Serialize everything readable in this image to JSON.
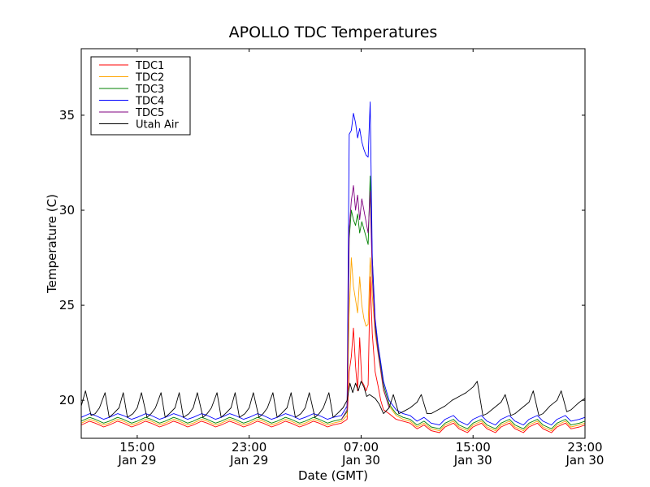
{
  "chart_data": {
    "type": "line",
    "title": "APOLLO TDC Temperatures",
    "xlabel": "Date (GMT)",
    "ylabel": "Temperature (C)",
    "xlim": [
      11,
      47
    ],
    "ylim": [
      18,
      38.5
    ],
    "grid": false,
    "legend_position": "top-left",
    "yticks": [
      {
        "value": 20,
        "label": "20"
      },
      {
        "value": 25,
        "label": "25"
      },
      {
        "value": 30,
        "label": "30"
      },
      {
        "value": 35,
        "label": "35"
      }
    ],
    "xticks": [
      {
        "value": 15,
        "time": "15:00",
        "date": "Jan 29"
      },
      {
        "value": 23,
        "time": "23:00",
        "date": "Jan 29"
      },
      {
        "value": 31,
        "time": "07:00",
        "date": "Jan 30"
      },
      {
        "value": 39,
        "time": "15:00",
        "date": "Jan 30"
      },
      {
        "value": 47,
        "time": "23:00",
        "date": "Jan 30"
      }
    ],
    "x_unit": "hours since 00:00 Jan 29 (GMT)",
    "series": [
      {
        "name": "TDC1",
        "color": "#ff0000",
        "x": [
          11.0,
          11.6,
          12.0,
          12.6,
          13.0,
          13.6,
          14.0,
          14.6,
          15.0,
          15.6,
          16.0,
          16.6,
          17.0,
          17.6,
          18.0,
          18.6,
          19.0,
          19.6,
          20.0,
          20.6,
          21.0,
          21.6,
          22.0,
          22.6,
          23.0,
          23.6,
          24.0,
          24.6,
          25.0,
          25.6,
          26.0,
          26.6,
          27.0,
          27.6,
          28.0,
          28.6,
          29.0,
          29.6,
          30.0,
          30.15,
          30.3,
          30.45,
          30.6,
          30.75,
          30.9,
          31.05,
          31.2,
          31.35,
          31.5,
          31.65,
          31.8,
          32.0,
          32.2,
          32.4,
          32.6,
          33.0,
          33.5,
          34.0,
          34.5,
          35.0,
          35.5,
          36.0,
          36.6,
          37.0,
          37.6,
          38.0,
          38.6,
          39.0,
          39.6,
          40.0,
          40.6,
          41.0,
          41.6,
          42.0,
          42.6,
          43.0,
          43.6,
          44.0,
          44.6,
          45.0,
          45.6,
          46.0,
          46.6,
          47.0
        ],
        "values": [
          18.7,
          18.9,
          18.8,
          18.6,
          18.7,
          18.9,
          18.8,
          18.6,
          18.7,
          18.9,
          18.8,
          18.6,
          18.7,
          18.9,
          18.8,
          18.6,
          18.7,
          18.9,
          18.8,
          18.6,
          18.7,
          18.9,
          18.8,
          18.6,
          18.7,
          18.9,
          18.8,
          18.6,
          18.7,
          18.9,
          18.8,
          18.6,
          18.7,
          18.9,
          18.8,
          18.6,
          18.7,
          18.8,
          19.0,
          21.5,
          22.3,
          23.8,
          21.8,
          20.5,
          23.3,
          21.0,
          20.8,
          20.5,
          20.8,
          26.5,
          23.5,
          21.5,
          20.8,
          20.0,
          19.5,
          19.3,
          19.0,
          18.9,
          18.8,
          18.5,
          18.7,
          18.4,
          18.3,
          18.6,
          18.8,
          18.5,
          18.3,
          18.6,
          18.8,
          18.5,
          18.3,
          18.6,
          18.8,
          18.5,
          18.3,
          18.6,
          18.8,
          18.5,
          18.3,
          18.6,
          18.8,
          18.5,
          18.6,
          18.7
        ]
      },
      {
        "name": "TDC2",
        "color": "#ffa500",
        "x": [
          11.0,
          11.6,
          12.0,
          12.6,
          13.0,
          13.6,
          14.0,
          14.6,
          15.0,
          15.6,
          16.0,
          16.6,
          17.0,
          17.6,
          18.0,
          18.6,
          19.0,
          19.6,
          20.0,
          20.6,
          21.0,
          21.6,
          22.0,
          22.6,
          23.0,
          23.6,
          24.0,
          24.6,
          25.0,
          25.6,
          26.0,
          26.6,
          27.0,
          27.6,
          28.0,
          28.6,
          29.0,
          29.6,
          30.0,
          30.15,
          30.3,
          30.45,
          30.6,
          30.75,
          30.9,
          31.05,
          31.2,
          31.35,
          31.5,
          31.65,
          31.8,
          32.0,
          32.2,
          32.4,
          32.6,
          33.0,
          33.5,
          34.0,
          34.5,
          35.0,
          35.5,
          36.0,
          36.6,
          37.0,
          37.6,
          38.0,
          38.6,
          39.0,
          39.6,
          40.0,
          40.6,
          41.0,
          41.6,
          42.0,
          42.6,
          43.0,
          43.6,
          44.0,
          44.6,
          45.0,
          45.6,
          46.0,
          46.6,
          47.0
        ],
        "values": [
          18.8,
          19.0,
          18.9,
          18.7,
          18.8,
          19.0,
          18.9,
          18.7,
          18.8,
          19.0,
          18.9,
          18.7,
          18.8,
          19.0,
          18.9,
          18.7,
          18.8,
          19.0,
          18.9,
          18.7,
          18.8,
          19.0,
          18.9,
          18.7,
          18.8,
          19.0,
          18.9,
          18.7,
          18.8,
          19.0,
          18.9,
          18.7,
          18.8,
          19.0,
          18.9,
          18.7,
          18.8,
          18.9,
          19.2,
          24.5,
          27.5,
          26.0,
          25.3,
          24.6,
          26.5,
          25.0,
          24.3,
          23.9,
          24.0,
          27.5,
          25.5,
          23.5,
          22.5,
          21.5,
          20.5,
          19.7,
          19.2,
          19.0,
          18.9,
          18.6,
          18.8,
          18.5,
          18.4,
          18.7,
          18.9,
          18.6,
          18.4,
          18.7,
          18.9,
          18.6,
          18.4,
          18.7,
          18.9,
          18.6,
          18.4,
          18.7,
          18.9,
          18.6,
          18.4,
          18.7,
          18.9,
          18.6,
          18.7,
          18.8
        ]
      },
      {
        "name": "TDC3",
        "color": "#008000",
        "x": [
          11.0,
          11.6,
          12.0,
          12.6,
          13.0,
          13.6,
          14.0,
          14.6,
          15.0,
          15.6,
          16.0,
          16.6,
          17.0,
          17.6,
          18.0,
          18.6,
          19.0,
          19.6,
          20.0,
          20.6,
          21.0,
          21.6,
          22.0,
          22.6,
          23.0,
          23.6,
          24.0,
          24.6,
          25.0,
          25.6,
          26.0,
          26.6,
          27.0,
          27.6,
          28.0,
          28.6,
          29.0,
          29.6,
          30.0,
          30.15,
          30.3,
          30.45,
          30.6,
          30.75,
          30.9,
          31.05,
          31.2,
          31.35,
          31.5,
          31.65,
          31.8,
          32.0,
          32.2,
          32.4,
          32.6,
          33.0,
          33.5,
          34.0,
          34.5,
          35.0,
          35.5,
          36.0,
          36.6,
          37.0,
          37.6,
          38.0,
          38.6,
          39.0,
          39.6,
          40.0,
          40.6,
          41.0,
          41.6,
          42.0,
          42.6,
          43.0,
          43.6,
          44.0,
          44.6,
          45.0,
          45.6,
          46.0,
          46.6,
          47.0
        ],
        "values": [
          18.9,
          19.1,
          19.0,
          18.8,
          18.9,
          19.1,
          19.0,
          18.8,
          18.9,
          19.1,
          19.0,
          18.8,
          18.9,
          19.1,
          19.0,
          18.8,
          18.9,
          19.1,
          19.0,
          18.8,
          18.9,
          19.1,
          19.0,
          18.8,
          18.9,
          19.1,
          19.0,
          18.8,
          18.9,
          19.1,
          19.0,
          18.8,
          18.9,
          19.1,
          19.0,
          18.8,
          18.9,
          19.0,
          19.4,
          28.5,
          30.0,
          29.5,
          29.2,
          29.8,
          28.8,
          29.4,
          29.0,
          28.6,
          28.2,
          31.8,
          27.5,
          24.0,
          22.8,
          21.8,
          20.8,
          19.8,
          19.3,
          19.1,
          19.0,
          18.7,
          18.9,
          18.6,
          18.5,
          18.8,
          19.0,
          18.7,
          18.5,
          18.8,
          19.0,
          18.7,
          18.5,
          18.8,
          19.0,
          18.7,
          18.5,
          18.8,
          19.0,
          18.7,
          18.5,
          18.8,
          19.0,
          18.7,
          18.8,
          18.9
        ]
      },
      {
        "name": "TDC4",
        "color": "#0000ff",
        "x": [
          11.0,
          11.6,
          12.0,
          12.6,
          13.0,
          13.6,
          14.0,
          14.6,
          15.0,
          15.6,
          16.0,
          16.6,
          17.0,
          17.6,
          18.0,
          18.6,
          19.0,
          19.6,
          20.0,
          20.6,
          21.0,
          21.6,
          22.0,
          22.6,
          23.0,
          23.6,
          24.0,
          24.6,
          25.0,
          25.6,
          26.0,
          26.6,
          27.0,
          27.6,
          28.0,
          28.6,
          29.0,
          29.6,
          30.0,
          30.15,
          30.3,
          30.45,
          30.6,
          30.75,
          30.9,
          31.05,
          31.2,
          31.35,
          31.5,
          31.65,
          31.8,
          32.0,
          32.2,
          32.4,
          32.6,
          33.0,
          33.5,
          34.0,
          34.5,
          35.0,
          35.5,
          36.0,
          36.6,
          37.0,
          37.6,
          38.0,
          38.6,
          39.0,
          39.6,
          40.0,
          40.6,
          41.0,
          41.6,
          42.0,
          42.6,
          43.0,
          43.6,
          44.0,
          44.6,
          45.0,
          45.6,
          46.0,
          46.6,
          47.0
        ],
        "values": [
          19.1,
          19.3,
          19.2,
          19.0,
          19.1,
          19.3,
          19.2,
          19.0,
          19.1,
          19.3,
          19.2,
          19.0,
          19.1,
          19.3,
          19.2,
          19.0,
          19.1,
          19.3,
          19.2,
          19.0,
          19.1,
          19.3,
          19.2,
          19.0,
          19.1,
          19.3,
          19.2,
          19.0,
          19.1,
          19.3,
          19.2,
          19.0,
          19.1,
          19.3,
          19.2,
          19.0,
          19.1,
          19.2,
          19.7,
          34.0,
          34.2,
          35.1,
          34.6,
          33.8,
          34.3,
          33.6,
          33.2,
          32.9,
          32.8,
          35.7,
          27.5,
          24.3,
          23.0,
          22.0,
          21.0,
          20.0,
          19.5,
          19.3,
          19.2,
          18.9,
          19.1,
          18.8,
          18.7,
          19.0,
          19.2,
          18.9,
          18.7,
          19.0,
          19.2,
          18.9,
          18.7,
          19.0,
          19.2,
          18.9,
          18.7,
          19.0,
          19.2,
          18.9,
          18.7,
          19.0,
          19.2,
          18.9,
          19.0,
          19.1
        ]
      },
      {
        "name": "TDC5",
        "color": "#800080",
        "x": [
          29.6,
          30.0,
          30.15,
          30.3,
          30.45,
          30.6,
          30.75,
          30.9,
          31.05,
          31.2,
          31.35,
          31.5,
          31.65,
          31.8,
          32.0,
          32.2,
          32.4,
          32.6,
          33.0
        ],
        "values": [
          19.0,
          19.5,
          29.0,
          30.5,
          31.3,
          30.0,
          30.8,
          29.5,
          30.6,
          30.0,
          29.4,
          28.8,
          31.0,
          26.5,
          23.8,
          22.6,
          21.6,
          20.6,
          19.6
        ]
      },
      {
        "name": "Utah Air",
        "color": "#000000",
        "x": [
          11.0,
          11.3,
          11.7,
          12.0,
          12.3,
          12.7,
          13.0,
          13.3,
          13.7,
          14.0,
          14.3,
          14.7,
          15.0,
          15.3,
          15.7,
          16.0,
          16.3,
          16.7,
          17.0,
          17.3,
          17.7,
          18.0,
          18.3,
          18.7,
          19.0,
          19.3,
          19.7,
          20.0,
          20.3,
          20.7,
          21.0,
          21.3,
          21.7,
          22.0,
          22.3,
          22.7,
          23.0,
          23.3,
          23.7,
          24.0,
          24.3,
          24.7,
          25.0,
          25.3,
          25.7,
          26.0,
          26.3,
          26.7,
          27.0,
          27.3,
          27.7,
          28.0,
          28.3,
          28.7,
          29.0,
          29.3,
          29.7,
          30.0,
          30.2,
          30.4,
          30.6,
          30.8,
          31.0,
          31.2,
          31.4,
          31.6,
          31.8,
          32.0,
          32.3,
          32.6,
          33.0,
          33.3,
          33.7,
          34.0,
          34.5,
          35.0,
          35.3,
          35.7,
          36.0,
          36.5,
          37.0,
          37.5,
          38.0,
          38.5,
          39.0,
          39.3,
          39.7,
          40.0,
          40.5,
          41.0,
          41.3,
          41.7,
          42.0,
          42.5,
          43.0,
          43.3,
          43.7,
          44.0,
          44.5,
          45.0,
          45.3,
          45.7,
          46.0,
          46.3,
          46.6,
          47.0
        ],
        "values": [
          19.7,
          20.5,
          19.2,
          19.3,
          19.6,
          20.4,
          19.1,
          19.3,
          19.6,
          20.4,
          19.1,
          19.3,
          19.6,
          20.4,
          19.1,
          19.3,
          19.6,
          20.4,
          19.1,
          19.3,
          19.6,
          20.4,
          19.1,
          19.3,
          19.6,
          20.4,
          19.1,
          19.3,
          19.6,
          20.4,
          19.1,
          19.3,
          19.6,
          20.4,
          19.1,
          19.3,
          19.6,
          20.4,
          19.1,
          19.3,
          19.6,
          20.4,
          19.1,
          19.3,
          19.6,
          20.4,
          19.1,
          19.3,
          19.6,
          20.4,
          19.1,
          19.3,
          19.6,
          20.4,
          19.1,
          19.3,
          19.6,
          20.0,
          20.9,
          20.4,
          20.9,
          20.5,
          21.0,
          20.7,
          20.2,
          20.3,
          20.2,
          20.1,
          19.8,
          19.3,
          19.6,
          20.3,
          19.3,
          19.4,
          19.6,
          19.9,
          20.3,
          19.3,
          19.3,
          19.5,
          19.7,
          20.0,
          20.2,
          20.4,
          20.7,
          21.0,
          19.2,
          19.3,
          19.6,
          19.9,
          20.3,
          19.2,
          19.3,
          19.6,
          19.9,
          20.5,
          19.2,
          19.3,
          19.7,
          20.0,
          20.5,
          19.4,
          19.5,
          19.7,
          19.9,
          20.1
        ]
      }
    ]
  }
}
